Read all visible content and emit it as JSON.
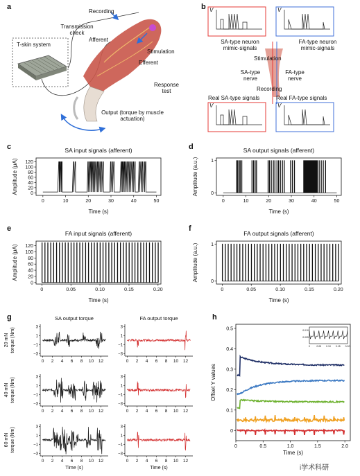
{
  "panel_labels": {
    "a": "a",
    "b": "b",
    "c": "c",
    "d": "d",
    "e": "e",
    "f": "f",
    "g": "g",
    "h": "h"
  },
  "panel_a": {
    "tskin": "T-skin system",
    "transmission": "Transmission check",
    "afferent": "Afferent",
    "recording": "Recording",
    "stimulation": "Stimulation",
    "efferent": "Efferent",
    "response": "Response test",
    "output": "Output (torque by muscle actuation)"
  },
  "panel_b": {
    "v_label": "V",
    "sa_mimic": "SA-type neuron mimic-signals",
    "fa_mimic": "FA-type neuron mimic-signals",
    "stimulation": "Stimulation",
    "sa_nerve": "SA-type nerve",
    "fa_nerve": "FA-type nerve",
    "recording": "Recording",
    "real_sa": "Real SA-type signals",
    "real_fa": "Real FA-type signals",
    "sa_color": "#e53935",
    "fa_color": "#3f6fd8"
  },
  "chart_data": [
    {
      "id": "c",
      "type": "line",
      "title": "SA input signals (afferent)",
      "xlabel": "Time (s)",
      "ylabel": "Amplitude (μA)",
      "xlim": [
        -3,
        52
      ],
      "ylim": [
        -10,
        135
      ],
      "xticks": [
        0,
        10,
        20,
        30,
        40,
        50
      ],
      "yticks": [
        0,
        20,
        40,
        60,
        80,
        100,
        120
      ],
      "baseline": 3,
      "peak": 120,
      "bursts": [
        [
          6.5,
          8.5
        ],
        [
          13,
          14.7
        ],
        [
          19.5,
          27
        ],
        [
          29.5,
          32
        ],
        [
          34,
          41
        ],
        [
          42,
          45.5
        ]
      ],
      "spikes": [
        7,
        7.4,
        7.9,
        8.3,
        13.4,
        14.2,
        19.8,
        20.4,
        21,
        21.5,
        22,
        22.6,
        23.2,
        23.9,
        24.5,
        25.1,
        25.8,
        26.5,
        29.8,
        30.5,
        31.2,
        34.4,
        34.9,
        35.4,
        35.9,
        36.5,
        37.1,
        37.8,
        38.4,
        39.1,
        39.8,
        40.5,
        42.4,
        43.1,
        43.8,
        44.6,
        45.2
      ]
    },
    {
      "id": "d",
      "type": "line",
      "title": "SA output signals (afferent)",
      "xlabel": "Time (s)",
      "ylabel": "Amplitude (a.u.)",
      "xlim": [
        -3,
        52
      ],
      "ylim": [
        -0.08,
        1.08
      ],
      "xticks": [
        0,
        10,
        20,
        30,
        40,
        50
      ],
      "yticks": [
        0,
        1
      ],
      "spikes": [
        5.8,
        6.3,
        6.9,
        7.4,
        8.1,
        12.6,
        13.3,
        14,
        14.6,
        19.7,
        20.3,
        21.1,
        22,
        22.7,
        23.6,
        24.3,
        25.1,
        26,
        26.8,
        29.6,
        30.4,
        31.3,
        35.4,
        35.7,
        36,
        36.3,
        36.6,
        36.9,
        37.2,
        37.5,
        37.8,
        38.1,
        38.4,
        38.7,
        39,
        39.3,
        39.6,
        39.9,
        40.2,
        40.5,
        40.8,
        41.1,
        41.4,
        42.2,
        43.1,
        44,
        45
      ]
    },
    {
      "id": "e",
      "type": "line",
      "title": "FA input signals (afferent)",
      "xlabel": "Time (s)",
      "ylabel": "Amplitude (μA)",
      "xlim": [
        -0.01,
        0.205
      ],
      "ylim": [
        -5,
        135
      ],
      "xticks": [
        0,
        0.05,
        0.1,
        0.15,
        0.2
      ],
      "xtick_labels": [
        "0",
        "0.05",
        "0.10",
        "0.15",
        "0.20"
      ],
      "yticks": [
        0,
        20,
        40,
        60,
        80,
        100,
        120
      ],
      "period": 0.005,
      "peak": 130
    },
    {
      "id": "f",
      "type": "line",
      "title": "FA output signals (afferent)",
      "xlabel": "Time (s)",
      "ylabel": "Amplitude (a.u.)",
      "xlim": [
        -0.01,
        0.205
      ],
      "ylim": [
        -0.08,
        1.08
      ],
      "xticks": [
        0,
        0.05,
        0.1,
        0.15,
        0.2
      ],
      "xtick_labels": [
        "0",
        "0.05",
        "0.10",
        "0.15",
        "0.20"
      ],
      "yticks": [
        0,
        1
      ],
      "period": 0.005
    },
    {
      "id": "g",
      "type": "line",
      "xlabel": "Time (s)",
      "ylabel_unit": "torque (Nm)",
      "col_titles": [
        "SA output torque",
        "FA output torque"
      ],
      "row_labels": [
        "20 mN",
        "40 mN",
        "60 mN"
      ],
      "xlim": [
        -0.5,
        13.5
      ],
      "ylim": [
        -3.5,
        3.5
      ],
      "xticks": [
        0,
        2,
        4,
        6,
        8,
        10,
        12
      ],
      "yticks": [
        -3,
        -1,
        1,
        3
      ],
      "ytick_labels": [
        "−3",
        "−1",
        "1",
        "3"
      ],
      "colors": [
        "#1a1a1a",
        "#d32f2f"
      ],
      "sa_bursts": [
        [
          [
            2.3,
            3.5
          ],
          [
            5,
            5.6
          ],
          [
            8.3,
            8.9
          ],
          [
            11,
            12.3
          ]
        ],
        [
          [
            2.3,
            4.2
          ],
          [
            5.2,
            6.8
          ],
          [
            8.2,
            9.2
          ],
          [
            10.3,
            12.3
          ]
        ],
        [
          [
            2.1,
            5.3
          ],
          [
            5.5,
            7.3
          ],
          [
            9,
            10
          ],
          [
            11.2,
            12.3
          ]
        ]
      ],
      "sa_amps": [
        2.2,
        2.8,
        3.3
      ],
      "fa_events": [
        2.2,
        12
      ]
    },
    {
      "id": "h",
      "type": "line",
      "xlabel": "Time (s)",
      "ylabel": "Offset Y values",
      "xlim": [
        0,
        2.1
      ],
      "ylim": [
        -0.05,
        0.52
      ],
      "xticks": [
        0,
        0.5,
        1,
        1.5,
        2
      ],
      "xtick_labels": [
        "0",
        "0.5",
        "1.0",
        "1.5",
        "2.0"
      ],
      "yticks": [
        0,
        0.1,
        0.2,
        0.3,
        0.4,
        0.5
      ],
      "ytick_labels": [
        "0",
        "0.1",
        "0.2",
        "0.3",
        "0.4",
        "0.5"
      ],
      "series": [
        {
          "color": "#1f2f66",
          "base": 0.27,
          "level": 0.32,
          "peak": 0.36
        },
        {
          "color": "#3a78c2",
          "base": 0.18,
          "level": 0.245,
          "peak": 0.21
        },
        {
          "color": "#6fb232",
          "base": 0.11,
          "level": 0.14,
          "peak": 0.15
        },
        {
          "color": "#f0a020",
          "base": 0.05,
          "level": 0.05,
          "peak": 0.05
        },
        {
          "color": "#d32f2f",
          "base": 0.0,
          "level": 0.0,
          "peak": 0.0
        }
      ],
      "inset": {
        "ytick_labels": [
          "0.010",
          "0.005"
        ],
        "xtick_labels": [
          "0",
          "0.05",
          "0.10",
          "0.15",
          "0.20"
        ]
      }
    }
  ],
  "watermark": "i学术科研"
}
